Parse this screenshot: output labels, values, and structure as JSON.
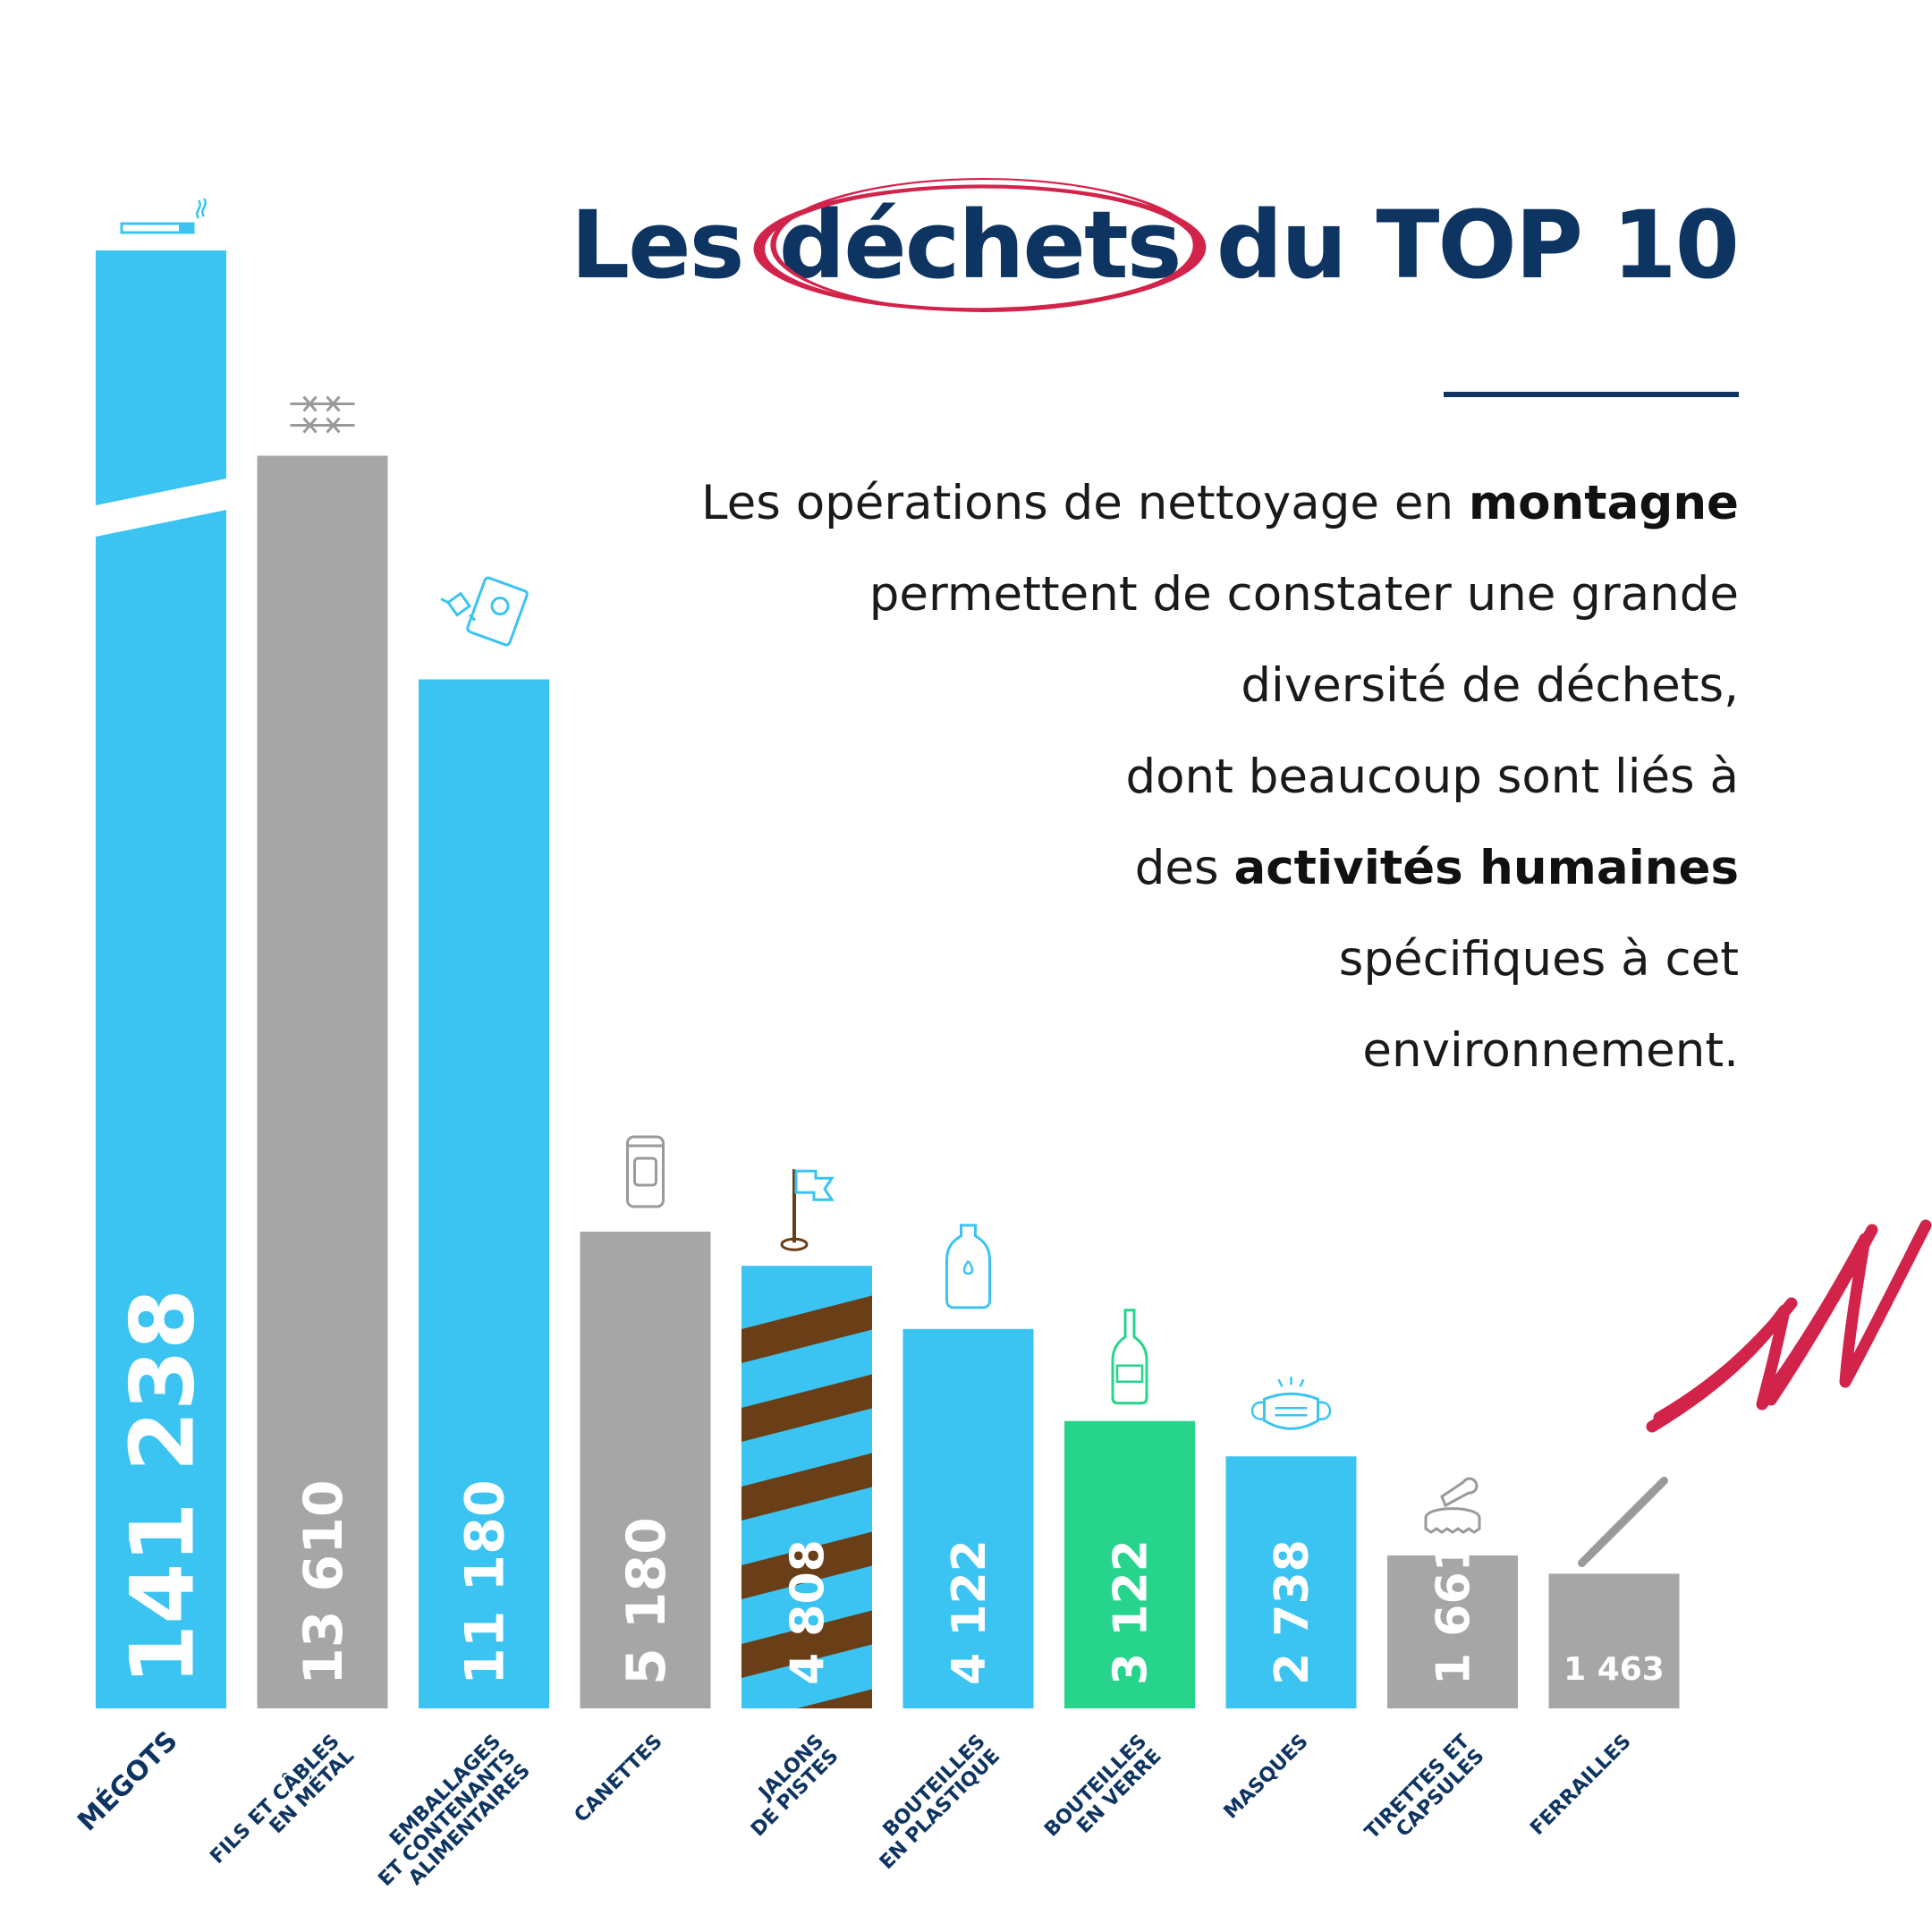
{
  "title": {
    "before": "Les",
    "circled": "déchets",
    "after": "du TOP 10"
  },
  "intro": [
    [
      {
        "t": "Les opérations de nettoyage en "
      },
      {
        "t": "montagne",
        "b": true
      }
    ],
    [
      {
        "t": "permettent de constater une grande"
      }
    ],
    [
      {
        "t": "diversité de déchets,"
      }
    ],
    [
      {
        "t": "dont beaucoup sont liés à"
      }
    ],
    [
      {
        "t": "des "
      },
      {
        "t": "activités humaines",
        "b": true
      }
    ],
    [
      {
        "t": "spécifiques à cet"
      }
    ],
    [
      {
        "t": "environnement. "
      }
    ]
  ],
  "colors": {
    "navy": "#0e3461",
    "blue": "#3bc4f2",
    "grey": "#a6a6a6",
    "green": "#27d48b",
    "brown": "#6a3e17",
    "red": "#d2234b",
    "icon_grey": "#9a9a9a"
  },
  "chart_data": {
    "type": "bar",
    "categories": [
      "MÉGOTS",
      "FILS ET CÂBLES EN MÉTAL",
      "EMBALLAGES ET CONTENANTS ALIMENTAIRES",
      "CANETTES",
      "JALONS DE PISTES",
      "BOUTEILLES EN PLASTIQUE",
      "BOUTEILLES EN VERRE",
      "MASQUES",
      "TIRETTES ET CAPSULES",
      "FERRAILLES"
    ],
    "values": [
      141238,
      13610,
      11180,
      5180,
      4808,
      4122,
      3122,
      2738,
      1661,
      1463
    ],
    "data_labels": [
      "141 238",
      "13 610",
      "11 180",
      "5 180",
      "4 808",
      "4 122",
      "3 122",
      "2 738",
      "1 661",
      "1 463"
    ],
    "bar_colors": [
      "blue",
      "grey",
      "blue",
      "grey",
      "striped",
      "blue",
      "green",
      "blue",
      "grey",
      "grey"
    ],
    "icons": [
      "cigarette-icon",
      "barbed-wire-icon",
      "food-packaging-icon",
      "can-icon",
      "ski-pole-flag-icon",
      "plastic-bottle-icon",
      "glass-bottle-icon",
      "face-mask-icon",
      "bottle-cap-icon",
      "scrap-metal-icon"
    ],
    "broken_axis_bar": 0,
    "ylim": [
      0,
      15500
    ],
    "xlabel": "",
    "ylabel": "",
    "grid": false,
    "legend": "none"
  }
}
